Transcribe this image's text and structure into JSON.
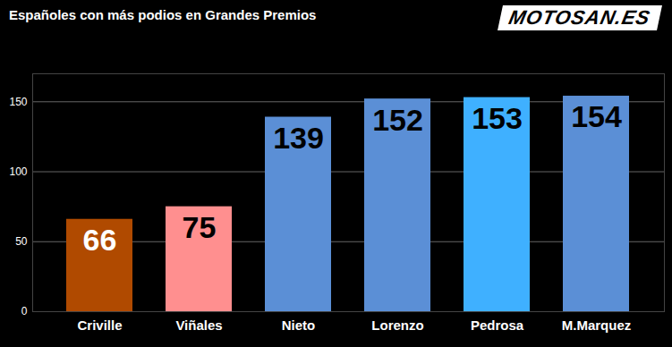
{
  "chart_data": {
    "type": "bar",
    "title": "Españoles con más podios en Grandes Premios",
    "logo": "MOTOSAN.ES",
    "categories": [
      "Criville",
      "Viñales",
      "Nieto",
      "Lorenzo",
      "Pedrosa",
      "M.Marquez"
    ],
    "values": [
      66,
      75,
      139,
      152,
      153,
      154
    ],
    "colors": [
      "#b04a00",
      "#ff8f8f",
      "#5b8fd6",
      "#5b8fd6",
      "#3fb0ff",
      "#5b8fd6"
    ],
    "ylim": [
      0,
      170
    ],
    "yticks": [
      0,
      50,
      100,
      150
    ],
    "grid": true,
    "data_labels": true
  }
}
